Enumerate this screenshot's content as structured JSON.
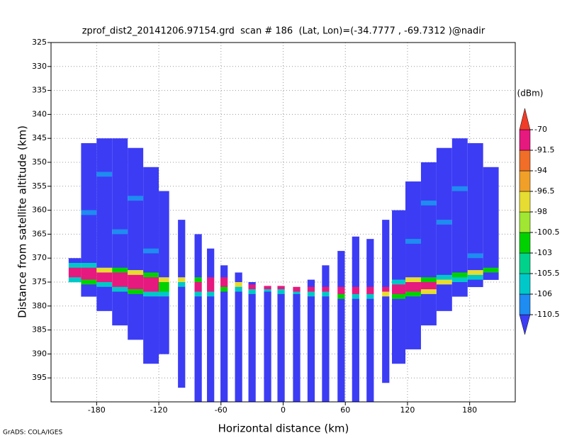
{
  "chart_data": {
    "type": "heatmap",
    "title": "zprof_dist2_20141206.97154.grd  scan # 186  (Lat, Lon)=(-34.7777 , -69.7312 )@nadir",
    "x_label": "Horizontal distance (km)",
    "y_label": "Distance from satellite altitude (km)",
    "footer": "GrADS: COLA/IGES",
    "xlim": [
      -224,
      224
    ],
    "ylim": [
      400,
      325
    ],
    "xticks": [
      -180,
      -120,
      -60,
      0,
      60,
      120,
      180
    ],
    "yticks": [
      325,
      330,
      335,
      340,
      345,
      350,
      355,
      360,
      365,
      370,
      375,
      380,
      385,
      390,
      395
    ],
    "grid": true,
    "colorbar": {
      "unit": "(dBm)",
      "levels": [
        -110.5,
        -106,
        -105.5,
        -103,
        -100.5,
        -98,
        -96.5,
        -94,
        -91.5,
        -70
      ],
      "colors": [
        "#3c3cf5",
        "#1e8cf0",
        "#00c8c8",
        "#00d28c",
        "#00d200",
        "#a0e632",
        "#e6dc32",
        "#f0a028",
        "#f06e28",
        "#e6197f",
        "#f03c28"
      ]
    },
    "columns": [
      {
        "x": [
          -207,
          -195
        ],
        "cells": [
          [
            370,
            371,
            -112
          ],
          [
            371,
            372,
            -105.7
          ],
          [
            372,
            374,
            -85
          ],
          [
            374,
            375,
            -105.7
          ]
        ]
      },
      {
        "x": [
          -195,
          -180
        ],
        "cells": [
          [
            346,
            360,
            -112
          ],
          [
            360,
            361,
            -109
          ],
          [
            361,
            371,
            -112
          ],
          [
            371,
            372,
            -105.7
          ],
          [
            372,
            374.5,
            -85
          ],
          [
            374.5,
            375.5,
            -102
          ],
          [
            375.5,
            378,
            -112
          ]
        ]
      },
      {
        "x": [
          -180,
          -165
        ],
        "cells": [
          [
            345,
            352,
            -112
          ],
          [
            352,
            353,
            -109
          ],
          [
            353,
            372,
            -112
          ],
          [
            372,
            373,
            -97
          ],
          [
            373,
            375,
            -85
          ],
          [
            375,
            376,
            -105.7
          ],
          [
            376,
            381,
            -112
          ]
        ]
      },
      {
        "x": [
          -165,
          -150
        ],
        "cells": [
          [
            345,
            364,
            -112
          ],
          [
            364,
            365,
            -109
          ],
          [
            365,
            372,
            -112
          ],
          [
            372,
            373,
            -102
          ],
          [
            373,
            376,
            -85
          ],
          [
            376,
            377,
            -105.7
          ],
          [
            377,
            384,
            -112
          ]
        ]
      },
      {
        "x": [
          -150,
          -135
        ],
        "cells": [
          [
            347,
            357,
            -112
          ],
          [
            357,
            358,
            -109
          ],
          [
            358,
            372.5,
            -112
          ],
          [
            372.5,
            373.5,
            -97
          ],
          [
            373.5,
            376.5,
            -85
          ],
          [
            376.5,
            377.5,
            -102
          ],
          [
            377.5,
            387,
            -112
          ]
        ]
      },
      {
        "x": [
          -135,
          -120
        ],
        "cells": [
          [
            351,
            368,
            -112
          ],
          [
            368,
            369,
            -109
          ],
          [
            369,
            373,
            -112
          ],
          [
            373,
            374,
            -102
          ],
          [
            374,
            377,
            -85
          ],
          [
            377,
            378,
            -105.7
          ],
          [
            378,
            392,
            -112
          ]
        ]
      },
      {
        "x": [
          -120,
          -110
        ],
        "cells": [
          [
            356,
            374,
            -112
          ],
          [
            374,
            375,
            -97
          ],
          [
            375,
            377,
            -102
          ],
          [
            377,
            378,
            -105.7
          ],
          [
            378,
            390,
            -112
          ]
        ]
      },
      {
        "x": [
          -101.5,
          -94.5
        ],
        "cells": [
          [
            362,
            374,
            -112
          ],
          [
            374,
            375,
            -97
          ],
          [
            375,
            376,
            -105.7
          ],
          [
            376,
            397,
            -112
          ]
        ]
      },
      {
        "x": [
          -85.5,
          -78.5
        ],
        "cells": [
          [
            365,
            374,
            -112
          ],
          [
            374,
            375,
            -102
          ],
          [
            375,
            377,
            -85
          ],
          [
            377,
            378,
            -105.7
          ],
          [
            378,
            400,
            -112
          ]
        ]
      },
      {
        "x": [
          -73.5,
          -66.5
        ],
        "cells": [
          [
            368,
            374,
            -112
          ],
          [
            374,
            377,
            -85
          ],
          [
            377,
            378,
            -105.7
          ],
          [
            378,
            400,
            -112
          ]
        ]
      },
      {
        "x": [
          -60.5,
          -53.5
        ],
        "cells": [
          [
            371.5,
            374,
            -112
          ],
          [
            374,
            376,
            -85
          ],
          [
            376,
            377,
            -102
          ],
          [
            377,
            400,
            -112
          ]
        ]
      },
      {
        "x": [
          -46.5,
          -39.5
        ],
        "cells": [
          [
            373,
            375,
            -112
          ],
          [
            375,
            376,
            -97
          ],
          [
            376,
            377,
            -105.7
          ],
          [
            377,
            400,
            -112
          ]
        ]
      },
      {
        "x": [
          -33.5,
          -26.5
        ],
        "cells": [
          [
            375,
            375.5,
            -112
          ],
          [
            375.5,
            376.5,
            -85
          ],
          [
            376.5,
            377.5,
            -105.7
          ],
          [
            377.5,
            400,
            -112
          ]
        ]
      },
      {
        "x": [
          -18.5,
          -11.5
        ],
        "cells": [
          [
            375.8,
            376.5,
            -85
          ],
          [
            376.5,
            377,
            -105.7
          ],
          [
            377,
            400,
            -112
          ]
        ]
      },
      {
        "x": [
          -5.5,
          1.5
        ],
        "cells": [
          [
            375.8,
            376.5,
            -85
          ],
          [
            376.5,
            377.5,
            -105.7
          ],
          [
            377.5,
            400,
            -112
          ]
        ]
      },
      {
        "x": [
          9.5,
          16.5
        ],
        "cells": [
          [
            376,
            377,
            -85
          ],
          [
            377,
            377.5,
            -105.7
          ],
          [
            377.5,
            400,
            -112
          ]
        ]
      },
      {
        "x": [
          23.5,
          30.5
        ],
        "cells": [
          [
            374.5,
            376,
            -112
          ],
          [
            376,
            377,
            -85
          ],
          [
            377,
            378,
            -105.7
          ],
          [
            378,
            400,
            -112
          ]
        ]
      },
      {
        "x": [
          37.5,
          44.5
        ],
        "cells": [
          [
            371.5,
            376,
            -112
          ],
          [
            376,
            377,
            -85
          ],
          [
            377,
            378,
            -105.7
          ],
          [
            378,
            400,
            -112
          ]
        ]
      },
      {
        "x": [
          52.5,
          59.5
        ],
        "cells": [
          [
            368.5,
            376,
            -112
          ],
          [
            376,
            377.5,
            -85
          ],
          [
            377.5,
            378.5,
            -102
          ],
          [
            378.5,
            400,
            -112
          ]
        ]
      },
      {
        "x": [
          66.5,
          73.5
        ],
        "cells": [
          [
            365.5,
            376,
            -112
          ],
          [
            376,
            377.5,
            -85
          ],
          [
            377.5,
            378.5,
            -105.7
          ],
          [
            378.5,
            400,
            -112
          ]
        ]
      },
      {
        "x": [
          80.5,
          87.5
        ],
        "cells": [
          [
            366,
            376,
            -112
          ],
          [
            376,
            377.5,
            -85
          ],
          [
            377.5,
            378.5,
            -105.7
          ],
          [
            378.5,
            400,
            -112
          ]
        ]
      },
      {
        "x": [
          95.5,
          102.5
        ],
        "cells": [
          [
            362,
            376,
            -112
          ],
          [
            376,
            377,
            -85
          ],
          [
            377,
            378,
            -97
          ],
          [
            378,
            396,
            -112
          ]
        ]
      },
      {
        "x": [
          105,
          118
        ],
        "cells": [
          [
            360,
            374.5,
            -112
          ],
          [
            374.5,
            375.5,
            -105.7
          ],
          [
            375.5,
            377.5,
            -85
          ],
          [
            377.5,
            378.5,
            -102
          ],
          [
            378.5,
            392,
            -112
          ]
        ]
      },
      {
        "x": [
          118,
          133
        ],
        "cells": [
          [
            354,
            366,
            -112
          ],
          [
            366,
            367,
            -109
          ],
          [
            367,
            374,
            -112
          ],
          [
            374,
            375,
            -97
          ],
          [
            375,
            377,
            -85
          ],
          [
            377,
            378,
            -102
          ],
          [
            378,
            389,
            -112
          ]
        ]
      },
      {
        "x": [
          133,
          148
        ],
        "cells": [
          [
            350,
            358,
            -112
          ],
          [
            358,
            359,
            -109
          ],
          [
            359,
            374,
            -112
          ],
          [
            374,
            375,
            -102
          ],
          [
            375,
            376.5,
            -85
          ],
          [
            376.5,
            377.5,
            -97
          ],
          [
            377.5,
            384,
            -112
          ]
        ]
      },
      {
        "x": [
          148,
          163
        ],
        "cells": [
          [
            347,
            362,
            -112
          ],
          [
            362,
            363,
            -109
          ],
          [
            363,
            373.5,
            -112
          ],
          [
            373.5,
            374.5,
            -105.7
          ],
          [
            374.5,
            375.5,
            -97
          ],
          [
            375.5,
            381,
            -112
          ]
        ]
      },
      {
        "x": [
          163,
          178
        ],
        "cells": [
          [
            345,
            355,
            -112
          ],
          [
            355,
            356,
            -109
          ],
          [
            356,
            373,
            -112
          ],
          [
            373,
            374,
            -102
          ],
          [
            374,
            375,
            -105.7
          ],
          [
            375,
            378,
            -112
          ]
        ]
      },
      {
        "x": [
          178,
          193
        ],
        "cells": [
          [
            346,
            369,
            -112
          ],
          [
            369,
            370,
            -109
          ],
          [
            370,
            372.5,
            -112
          ],
          [
            372.5,
            373.5,
            -97
          ],
          [
            373.5,
            374.5,
            -105.7
          ],
          [
            374.5,
            376,
            -112
          ]
        ]
      },
      {
        "x": [
          193,
          208
        ],
        "cells": [
          [
            351,
            372,
            -112
          ],
          [
            372,
            373,
            -102
          ],
          [
            373,
            374.5,
            -112
          ]
        ]
      }
    ]
  }
}
